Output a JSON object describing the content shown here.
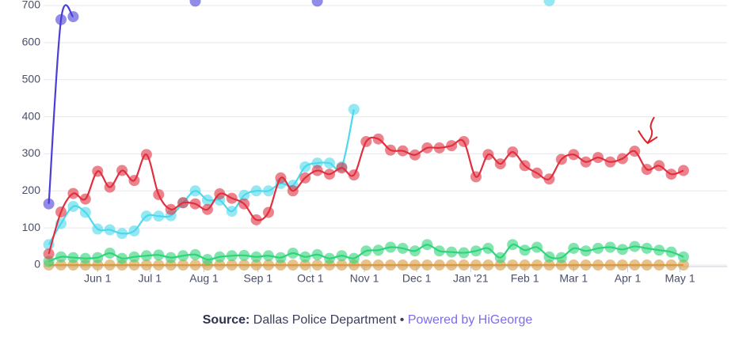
{
  "chart_data": {
    "type": "line",
    "x": [
      -28,
      -21,
      -14,
      -7,
      0,
      7,
      14,
      21,
      28,
      35,
      42,
      49,
      56,
      63,
      70,
      77,
      84,
      91,
      98,
      105,
      112,
      119,
      126,
      133,
      140,
      147,
      154,
      161,
      168,
      175,
      182,
      189,
      196,
      203,
      210,
      217,
      224,
      231,
      238,
      245,
      252,
      259,
      266,
      273,
      280,
      287,
      294,
      301,
      308,
      315,
      322,
      329,
      336
    ],
    "xlim": [
      -31,
      361
    ],
    "xticks": [
      {
        "value": 0,
        "label": "Jun 1"
      },
      {
        "value": 30,
        "label": "Jul 1"
      },
      {
        "value": 61,
        "label": "Aug 1"
      },
      {
        "value": 92,
        "label": "Sep 1"
      },
      {
        "value": 122,
        "label": "Oct 1"
      },
      {
        "value": 153,
        "label": "Nov 1"
      },
      {
        "value": 183,
        "label": "Dec 1"
      },
      {
        "value": 214,
        "label": "Jan '21"
      },
      {
        "value": 245,
        "label": "Feb 1"
      },
      {
        "value": 273,
        "label": "Mar 1"
      },
      {
        "value": 304,
        "label": "Apr 1"
      },
      {
        "value": 334,
        "label": "May 1"
      }
    ],
    "ylim": [
      0,
      715
    ],
    "yticks": [
      0,
      100,
      200,
      300,
      400,
      500,
      600,
      700
    ],
    "grid": true,
    "series": [
      {
        "color": "#d99a40",
        "values": [
          0,
          0,
          0,
          0,
          0,
          0,
          0,
          0,
          0,
          0,
          0,
          0,
          0,
          0,
          0,
          0,
          0,
          0,
          0,
          0,
          0,
          0,
          0,
          0,
          0,
          0,
          0,
          0,
          0,
          0,
          0,
          0,
          0,
          0,
          0,
          0,
          0,
          0,
          0,
          0,
          0,
          0,
          0,
          0,
          0,
          0,
          0,
          0,
          0,
          0,
          0,
          0,
          0
        ]
      },
      {
        "color": "#2fd47a",
        "values": [
          10,
          22,
          20,
          18,
          20,
          32,
          18,
          22,
          25,
          27,
          20,
          25,
          28,
          15,
          22,
          25,
          26,
          22,
          25,
          20,
          32,
          22,
          28,
          18,
          25,
          18,
          38,
          40,
          48,
          45,
          38,
          55,
          38,
          35,
          33,
          38,
          45,
          20,
          55,
          40,
          48,
          22,
          20,
          45,
          38,
          45,
          48,
          42,
          50,
          45,
          40,
          35,
          22
        ]
      },
      {
        "color": "#4dd9ec",
        "values": [
          55,
          112,
          158,
          142,
          97,
          95,
          85,
          92,
          132,
          132,
          133,
          168,
          200,
          175,
          175,
          145,
          188,
          200,
          200,
          220,
          215,
          265,
          275,
          275,
          265,
          420,
          null,
          null,
          null,
          null,
          null,
          null,
          null,
          null,
          null,
          null,
          null,
          null,
          null,
          null,
          null,
          713,
          null,
          null,
          null,
          null,
          null,
          null,
          null,
          null,
          null,
          null,
          null
        ]
      },
      {
        "color": "#e03040",
        "values": [
          30,
          143,
          193,
          178,
          253,
          210,
          255,
          228,
          298,
          190,
          150,
          168,
          165,
          150,
          192,
          180,
          165,
          122,
          142,
          235,
          200,
          235,
          255,
          245,
          262,
          243,
          333,
          340,
          310,
          308,
          297,
          316,
          316,
          322,
          333,
          238,
          298,
          273,
          305,
          268,
          248,
          232,
          285,
          298,
          278,
          290,
          278,
          287,
          307,
          258,
          268,
          245,
          255
        ]
      },
      {
        "color": "#4a3ed8",
        "values": [
          165,
          662,
          670,
          null,
          null,
          null,
          null,
          null,
          null,
          null,
          null,
          null,
          712,
          null,
          null,
          null,
          null,
          null,
          null,
          null,
          null,
          null,
          712,
          null,
          null,
          null,
          null,
          null,
          null,
          null,
          null,
          null,
          null,
          null,
          null,
          null,
          null,
          null,
          null,
          null,
          null,
          null,
          null,
          null,
          null,
          null,
          null,
          null,
          null,
          null,
          null,
          null,
          null
        ]
      }
    ]
  },
  "footer": {
    "source_label": "Source:",
    "source": "Dallas Police Department",
    "separator": "•",
    "powered": "Powered by HiGeorge"
  }
}
